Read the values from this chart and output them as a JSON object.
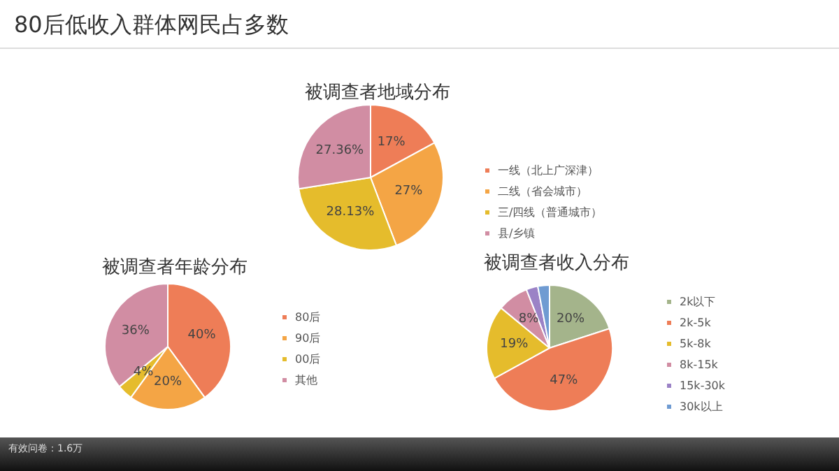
{
  "chart_data": [
    {
      "type": "pie",
      "title": "被调查者地域分布",
      "annotations": [
        "80后低收入群体网民占多数",
        "有效问卷：1.6万"
      ],
      "categories": [
        "一线（北上广深津）",
        "二线（省会城市）",
        "三/四线（普通城市）",
        "县/乡镇"
      ],
      "values": [
        17,
        27,
        28.13,
        27.36
      ],
      "value_labels": [
        "17%",
        "27%",
        "28.13%",
        "27.36%"
      ],
      "colors": [
        "#ee7d57",
        "#f4a545",
        "#e5bc2c",
        "#d18da3"
      ],
      "legend": "right"
    },
    {
      "type": "pie",
      "title": "被调查者年龄分布",
      "categories": [
        "80后",
        "90后",
        "00后",
        "其他"
      ],
      "values": [
        40,
        20,
        4,
        36
      ],
      "value_labels": [
        "40%",
        "20%",
        "4%",
        "36%"
      ],
      "colors": [
        "#ee7d57",
        "#f4a545",
        "#e5bc2c",
        "#d18da3"
      ],
      "legend": "right"
    },
    {
      "type": "pie",
      "title": "被调查者收入分布",
      "categories": [
        "2k以下",
        "2k-5k",
        "5k-8k",
        "8k-15k",
        "15k-30k",
        "30k以上"
      ],
      "values": [
        20,
        47,
        19,
        8,
        3,
        3
      ],
      "value_labels": [
        "20%",
        "47%",
        "19%",
        "8%",
        null,
        null
      ],
      "colors": [
        "#a4b48b",
        "#ee7d57",
        "#e5bc2c",
        "#d18da3",
        "#9b82c6",
        "#6f9bd2"
      ],
      "legend": "right"
    }
  ]
}
